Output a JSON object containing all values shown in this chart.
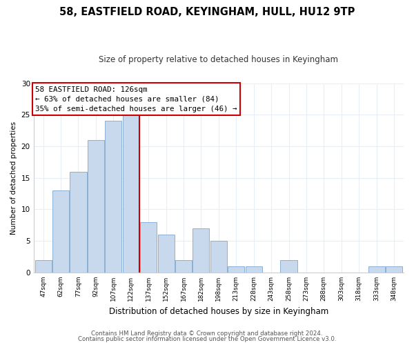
{
  "title": "58, EASTFIELD ROAD, KEYINGHAM, HULL, HU12 9TP",
  "subtitle": "Size of property relative to detached houses in Keyingham",
  "xlabel": "Distribution of detached houses by size in Keyingham",
  "ylabel": "Number of detached properties",
  "bin_labels": [
    "47sqm",
    "62sqm",
    "77sqm",
    "92sqm",
    "107sqm",
    "122sqm",
    "137sqm",
    "152sqm",
    "167sqm",
    "182sqm",
    "198sqm",
    "213sqm",
    "228sqm",
    "243sqm",
    "258sqm",
    "273sqm",
    "288sqm",
    "303sqm",
    "318sqm",
    "333sqm",
    "348sqm"
  ],
  "bar_heights": [
    2,
    13,
    16,
    21,
    24,
    25,
    8,
    6,
    2,
    7,
    5,
    1,
    1,
    0,
    2,
    0,
    0,
    0,
    0,
    1,
    1
  ],
  "bar_color": "#c8d9ee",
  "bar_edge_color": "#8ab0d4",
  "vline_x": 5.5,
  "vline_color": "#cc0000",
  "annotation_text": "58 EASTFIELD ROAD: 126sqm\n← 63% of detached houses are smaller (84)\n35% of semi-detached houses are larger (46) →",
  "annotation_box_edge": "#cc0000",
  "ylim": [
    0,
    30
  ],
  "yticks": [
    0,
    5,
    10,
    15,
    20,
    25,
    30
  ],
  "footer1": "Contains HM Land Registry data © Crown copyright and database right 2024.",
  "footer2": "Contains public sector information licensed under the Open Government Licence v3.0.",
  "background_color": "#ffffff",
  "grid_color": "#e8eef5",
  "title_fontsize": 10.5,
  "subtitle_fontsize": 8.5
}
